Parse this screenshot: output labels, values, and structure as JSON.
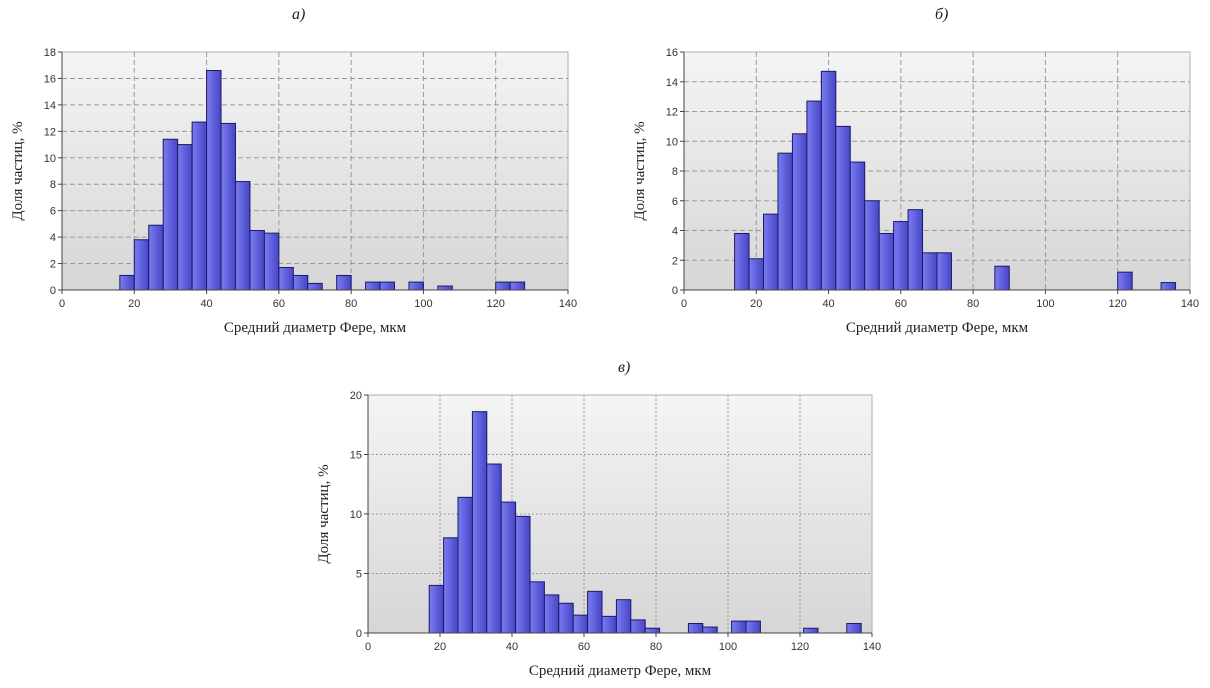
{
  "panels": {
    "a": {
      "label": "а)"
    },
    "b": {
      "label": "б)"
    },
    "c": {
      "label": "в)"
    }
  },
  "colors": {
    "bar_fill_top": "#7b7bf0",
    "bar_fill_bottom": "#4646c8",
    "bar_stroke": "#1a1a66",
    "plot_bg_top": "#f4f4f4",
    "plot_bg_bottom": "#d6d6d6",
    "grid": "#9a9a9a"
  },
  "chart_data": [
    {
      "type": "bar",
      "id": "a",
      "title": "",
      "xlabel": "Средний диаметр Фере, мкм",
      "ylabel": "Доля частиц, %",
      "xlim": [
        0,
        140
      ],
      "ylim": [
        0,
        18
      ],
      "bin_width": 4,
      "x_ticks": [
        0,
        20,
        40,
        60,
        80,
        100,
        120,
        140
      ],
      "y_ticks": [
        0,
        2,
        4,
        6,
        8,
        10,
        12,
        14,
        16,
        18
      ],
      "grid": "dashed",
      "x": [
        18,
        22,
        26,
        30,
        34,
        38,
        42,
        46,
        50,
        54,
        58,
        62,
        66,
        70,
        78,
        86,
        90,
        98,
        106,
        122,
        126
      ],
      "values": [
        1.1,
        3.8,
        4.9,
        11.4,
        11.0,
        12.7,
        16.6,
        12.6,
        8.2,
        4.5,
        4.3,
        1.7,
        1.1,
        0.5,
        1.1,
        0.6,
        0.6,
        0.6,
        0.3,
        0.6,
        0.6
      ]
    },
    {
      "type": "bar",
      "id": "b",
      "title": "",
      "xlabel": "Средний диаметр Фере, мкм",
      "ylabel": "Доля частиц, %",
      "xlim": [
        0,
        140
      ],
      "ylim": [
        0,
        16
      ],
      "bin_width": 4,
      "x_ticks": [
        0,
        20,
        40,
        60,
        80,
        100,
        120,
        140
      ],
      "y_ticks": [
        0,
        2,
        4,
        6,
        8,
        10,
        12,
        14,
        16
      ],
      "grid": "dashed",
      "x": [
        16,
        20,
        24,
        28,
        32,
        36,
        40,
        44,
        48,
        52,
        56,
        60,
        64,
        68,
        72,
        88,
        122,
        134
      ],
      "values": [
        3.8,
        2.1,
        5.1,
        9.2,
        10.5,
        12.7,
        14.7,
        11.0,
        8.6,
        6.0,
        3.8,
        4.6,
        5.4,
        2.5,
        2.5,
        1.6,
        1.2,
        0.5
      ]
    },
    {
      "type": "bar",
      "id": "c",
      "title": "",
      "xlabel": "Средний диаметр Фере, мкм",
      "ylabel": "Доля частиц, %",
      "xlim": [
        0,
        140
      ],
      "ylim": [
        0,
        20
      ],
      "bin_width": 4,
      "x_ticks": [
        0,
        20,
        40,
        60,
        80,
        100,
        120,
        140
      ],
      "y_ticks": [
        0,
        5,
        10,
        15,
        20
      ],
      "grid": "dotted",
      "x": [
        19,
        23,
        27,
        31,
        35,
        39,
        43,
        47,
        51,
        55,
        59,
        63,
        67,
        71,
        75,
        79,
        83,
        91,
        95,
        103,
        107,
        123,
        135
      ],
      "values": [
        4.0,
        8.0,
        11.4,
        18.6,
        14.2,
        11.0,
        9.8,
        4.3,
        3.2,
        2.5,
        1.5,
        3.5,
        1.4,
        2.8,
        1.1,
        0.4,
        0,
        0.8,
        0.5,
        1.0,
        1.0,
        0.4,
        0.8
      ]
    }
  ]
}
